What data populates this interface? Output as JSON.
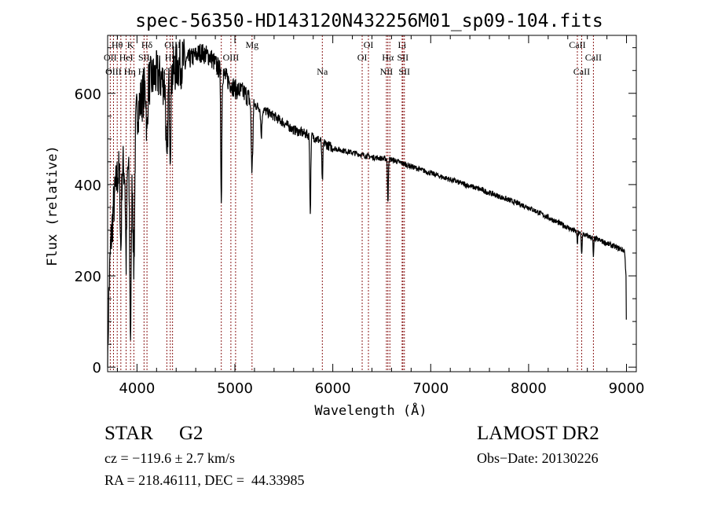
{
  "chart_data": {
    "type": "line",
    "title": "spec-56350-HD143120N432256M01_sp09-104.fits",
    "xlabel": "Wavelength (Å)",
    "ylabel": "Flux (relative)",
    "xlim": [
      3700,
      9100
    ],
    "ylim": [
      -10,
      727
    ],
    "x_ticks": [
      4000,
      5000,
      6000,
      7000,
      8000,
      9000
    ],
    "y_ticks": [
      0,
      200,
      400,
      600
    ],
    "grid": false,
    "line_color": "#000000",
    "marker_line_color": "#8b1a1a",
    "series": [
      {
        "name": "spectrum",
        "continuum": [
          [
            3700,
            0
          ],
          [
            3712,
            150
          ],
          [
            3730,
            260
          ],
          [
            3760,
            350
          ],
          [
            3800,
            420
          ],
          [
            3850,
            440
          ],
          [
            3900,
            430
          ],
          [
            3950,
            470
          ],
          [
            4000,
            560
          ],
          [
            4100,
            620
          ],
          [
            4200,
            640
          ],
          [
            4300,
            620
          ],
          [
            4400,
            660
          ],
          [
            4500,
            670
          ],
          [
            4650,
            690
          ],
          [
            4750,
            680
          ],
          [
            4850,
            650
          ],
          [
            5000,
            610
          ],
          [
            5100,
            600
          ],
          [
            5200,
            575
          ],
          [
            5400,
            550
          ],
          [
            5600,
            520
          ],
          [
            5800,
            505
          ],
          [
            6000,
            480
          ],
          [
            6200,
            470
          ],
          [
            6400,
            460
          ],
          [
            6600,
            455
          ],
          [
            6800,
            440
          ],
          [
            7000,
            425
          ],
          [
            7500,
            390
          ],
          [
            8000,
            350
          ],
          [
            8500,
            295
          ],
          [
            8700,
            280
          ],
          [
            8980,
            255
          ],
          [
            8995,
            200
          ],
          [
            9000,
            40
          ]
        ],
        "absorption": [
          [
            3934,
            380,
            8
          ],
          [
            3968,
            280,
            8
          ],
          [
            3835,
            180,
            6
          ],
          [
            3889,
            200,
            6
          ],
          [
            4102,
            120,
            6
          ],
          [
            4305,
            200,
            8
          ],
          [
            4340,
            150,
            6
          ],
          [
            4861,
            290,
            5
          ],
          [
            5175,
            150,
            8
          ],
          [
            5270,
            60,
            6
          ],
          [
            5770,
            170,
            5
          ],
          [
            5893,
            90,
            5
          ],
          [
            6563,
            100,
            4
          ],
          [
            8498,
            30,
            3
          ],
          [
            8542,
            45,
            4
          ],
          [
            8662,
            40,
            4
          ]
        ]
      }
    ],
    "line_markers": [
      {
        "label": "OII",
        "wavelength": 3727,
        "row": 2
      },
      {
        "label": "OIII",
        "wavelength": 3760,
        "row": 3
      },
      {
        "label": "Hθ",
        "wavelength": 3798,
        "row": 1
      },
      {
        "label": "Hη",
        "wavelength": 3835,
        "row": 3
      },
      {
        "label": "HeI",
        "wavelength": 3889,
        "row": 2
      },
      {
        "label": "K",
        "wavelength": 3934,
        "row": 1
      },
      {
        "label": "H",
        "wavelength": 3968,
        "row": 3
      },
      {
        "label": "SII",
        "wavelength": 4072,
        "row": 2
      },
      {
        "label": "Hδ",
        "wavelength": 4102,
        "row": 1
      },
      {
        "label": "G",
        "wavelength": 4305,
        "row": 3
      },
      {
        "label": "Hγ",
        "wavelength": 4340,
        "row": 2
      },
      {
        "label": "OIII",
        "wavelength": 4363,
        "row": 1
      },
      {
        "label": "Hβ",
        "wavelength": 4861,
        "row": 3
      },
      {
        "label": "OIII",
        "wavelength": 4959,
        "row": 2
      },
      {
        "label": "OIII",
        "wavelength": 5007,
        "row": 0
      },
      {
        "label": "Mg",
        "wavelength": 5175,
        "row": 1
      },
      {
        "label": "Na",
        "wavelength": 5893,
        "row": 3
      },
      {
        "label": "OI",
        "wavelength": 6300,
        "row": 2
      },
      {
        "label": "OI",
        "wavelength": 6364,
        "row": 1
      },
      {
        "label": "NII",
        "wavelength": 6548,
        "row": 3
      },
      {
        "label": "Hα",
        "wavelength": 6563,
        "row": 2
      },
      {
        "label": "NII",
        "wavelength": 6583,
        "row": 0
      },
      {
        "label": "Li",
        "wavelength": 6708,
        "row": 1
      },
      {
        "label": "SII",
        "wavelength": 6716,
        "row": 2
      },
      {
        "label": "SII",
        "wavelength": 6731,
        "row": 3
      },
      {
        "label": "CaII",
        "wavelength": 8498,
        "row": 1
      },
      {
        "label": "CaII",
        "wavelength": 8542,
        "row": 3
      },
      {
        "label": "CaII",
        "wavelength": 8662,
        "row": 2
      }
    ]
  },
  "footer": {
    "class_label": "STAR",
    "subclass": "G2",
    "survey": "LAMOST DR2",
    "cz": "cz = −119.6 ± 2.7 km/s",
    "obs_date": "Obs−Date: 20130226",
    "coords": "RA = 218.46111, DEC =  44.33985"
  }
}
